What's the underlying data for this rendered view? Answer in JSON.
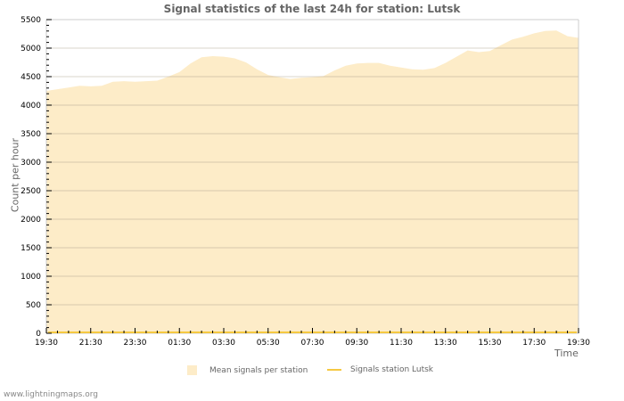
{
  "page": {
    "footer_text": "www.lightningmaps.org"
  },
  "chart_data": {
    "type": "area",
    "title": "Signal statistics of the last 24h for station: Lutsk",
    "xlabel": "Time",
    "ylabel": "Count per hour",
    "ylim": [
      0,
      5500
    ],
    "yticks": [
      0,
      500,
      1000,
      1500,
      2000,
      2500,
      3000,
      3500,
      4000,
      4500,
      5000,
      5500
    ],
    "xtick_labels": [
      "19:30",
      "21:30",
      "23:30",
      "01:30",
      "03:30",
      "05:30",
      "07:30",
      "09:30",
      "11:30",
      "13:30",
      "15:30",
      "17:30",
      "19:30"
    ],
    "grid": true,
    "legend_position": "bottom",
    "x_hours": [
      0,
      0.5,
      1,
      1.5,
      2,
      2.5,
      3,
      3.5,
      4,
      4.5,
      5,
      5.5,
      6,
      6.5,
      7,
      7.5,
      8,
      8.5,
      9,
      9.5,
      10,
      10.5,
      11,
      11.5,
      12,
      12.5,
      13,
      13.5,
      14,
      14.5,
      15,
      15.5,
      16,
      16.5,
      17,
      17.5,
      18,
      18.5,
      19,
      19.5,
      20,
      20.5,
      21,
      21.5,
      22,
      22.5,
      23,
      23.5,
      24
    ],
    "series": [
      {
        "name": "Mean signals per station",
        "style": "area",
        "color": "#fdecc8",
        "values": [
          4250,
          4280,
          4310,
          4340,
          4330,
          4340,
          4410,
          4420,
          4410,
          4420,
          4430,
          4500,
          4580,
          4730,
          4840,
          4860,
          4850,
          4820,
          4750,
          4630,
          4530,
          4490,
          4460,
          4480,
          4490,
          4510,
          4610,
          4690,
          4730,
          4740,
          4740,
          4690,
          4660,
          4630,
          4620,
          4650,
          4740,
          4850,
          4960,
          5020,
          5000,
          4980,
          4900,
          4880,
          4910,
          4990,
          5050,
          5080,
          5000
        ]
      },
      {
        "name": "Signals station Lutsk",
        "style": "line",
        "color": "#f5c942",
        "values": [
          0,
          0,
          0,
          0,
          0,
          0,
          0,
          0,
          0,
          0,
          0,
          0,
          0,
          0,
          0,
          0,
          0,
          0,
          0,
          0,
          0,
          0,
          0,
          0,
          0,
          0,
          0,
          0,
          0,
          0,
          0,
          0,
          0,
          0,
          0,
          0,
          0,
          0,
          0,
          0,
          0,
          0,
          0,
          0,
          0,
          0,
          0,
          0,
          0
        ]
      }
    ],
    "tail_values_note_hours_22_to_24": [
      4930,
      4950,
      5050,
      5150,
      5200,
      5260,
      5300,
      5310,
      5210,
      5180
    ]
  },
  "legend": {
    "items": [
      {
        "label": "Mean signals per station"
      },
      {
        "label": "Signals station Lutsk"
      }
    ]
  }
}
